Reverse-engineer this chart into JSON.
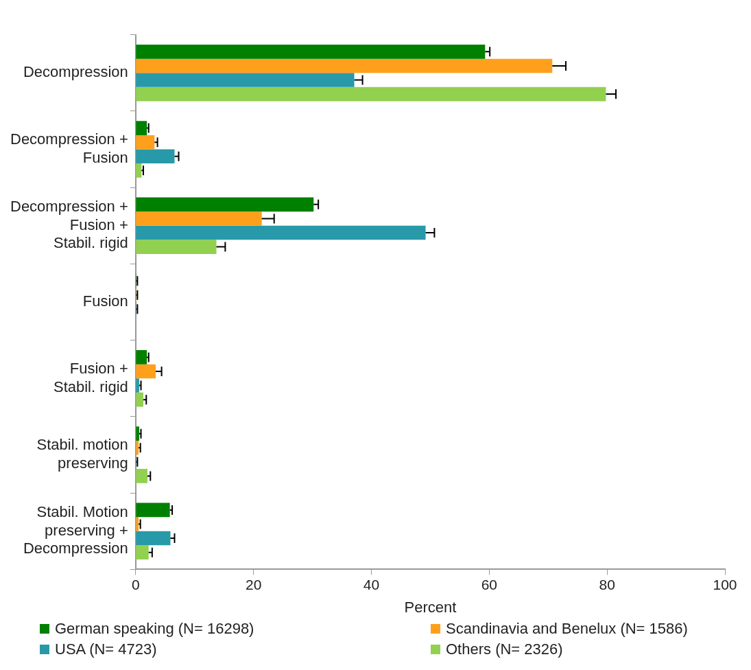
{
  "chart_data": {
    "type": "bar",
    "orientation": "horizontal",
    "xlabel": "Percent",
    "categories": [
      "Decompression",
      "Decompression + Fusion",
      "Decompression + Fusion + Stabil. rigid",
      "Fusion",
      "Fusion + Stabil. rigid",
      "Stabil. motion preserving",
      "Stabil. Motion preserving + Decompression"
    ],
    "series": [
      {
        "name": "German speaking (N= 16298)",
        "color": "#008000",
        "values": [
          59.3,
          1.9,
          30.2,
          0.1,
          1.9,
          0.6,
          5.8
        ],
        "errors": [
          [
            59.3,
            60.1
          ],
          [
            1.9,
            2.2
          ],
          [
            30.2,
            31.0
          ],
          [
            0.1,
            0.3
          ],
          [
            1.9,
            2.2
          ],
          [
            0.6,
            0.9
          ],
          [
            5.8,
            6.2
          ]
        ]
      },
      {
        "name": "Scandinavia and Benelux (N= 1586)",
        "color": "#ffa01c",
        "values": [
          70.7,
          3.2,
          21.4,
          0.1,
          3.4,
          0.5,
          0.5
        ],
        "errors": [
          [
            70.7,
            73.0
          ],
          [
            3.2,
            3.7
          ],
          [
            21.4,
            23.5
          ],
          [
            0.1,
            0.3
          ],
          [
            3.4,
            4.4
          ],
          [
            0.5,
            0.8
          ],
          [
            0.5,
            0.8
          ]
        ]
      },
      {
        "name": "USA (N= 4723)",
        "color": "#2899a8",
        "values": [
          37.1,
          6.6,
          49.2,
          0.1,
          0.6,
          0.1,
          5.9
        ],
        "errors": [
          [
            37.1,
            38.5
          ],
          [
            6.6,
            7.3
          ],
          [
            49.2,
            50.7
          ],
          [
            0.1,
            0.3
          ],
          [
            0.6,
            0.9
          ],
          [
            0.1,
            0.3
          ],
          [
            5.9,
            6.6
          ]
        ]
      },
      {
        "name": "Others (N= 2326)",
        "color": "#92d050",
        "values": [
          79.8,
          1.0,
          13.7,
          0,
          1.3,
          2.0,
          2.2
        ],
        "errors": [
          [
            79.8,
            81.5
          ],
          [
            1.0,
            1.3
          ],
          [
            13.7,
            15.2
          ],
          null,
          [
            1.3,
            1.8
          ],
          [
            2.0,
            2.5
          ],
          [
            2.2,
            2.8
          ]
        ]
      }
    ],
    "xlim": [
      0,
      100
    ],
    "xticks": [
      0,
      20,
      40,
      60,
      80,
      100
    ],
    "grid": false,
    "legend": "bottom"
  }
}
